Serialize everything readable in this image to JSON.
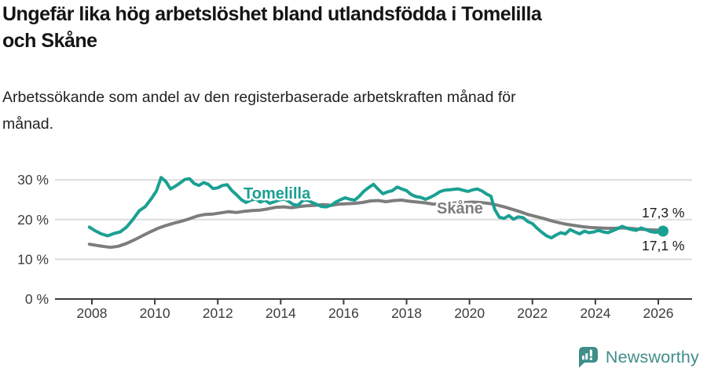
{
  "header": {
    "title_line1": "Ungefär lika hög arbetslöshet bland utlandsfödda i Tomelilla",
    "title_line2": "och Skåne",
    "subtitle_line1": "Arbetssökande som andel av den registerbaserade arbetskraften månad för",
    "subtitle_line2": "månad."
  },
  "chart_data": {
    "type": "line",
    "title": "Ungefär lika hög arbetslöshet bland utlandsfödda i Tomelilla och Skåne",
    "subtitle": "Arbetssökande som andel av den registerbaserade arbetskraften månad för månad.",
    "xlim": [
      2007.8,
      2027.1
    ],
    "ylim": [
      0,
      32
    ],
    "grid": "horizontal-only",
    "legend_position": "inline-labels-on-lines",
    "x_ticks": [
      2008,
      2010,
      2012,
      2014,
      2016,
      2018,
      2020,
      2022,
      2024,
      2026
    ],
    "y_ticks": [
      {
        "value": 0,
        "label": "0 %"
      },
      {
        "value": 10,
        "label": "10 %"
      },
      {
        "value": 20,
        "label": "20 %"
      },
      {
        "value": 30,
        "label": "30 %"
      }
    ],
    "colors": {
      "tomelilla": "#1aa093",
      "skane": "#7d7d7d",
      "grid": "#dcdcdc",
      "axis": "#3c3c3c"
    },
    "series": [
      {
        "name": "Tomelilla",
        "color": "#1aa093",
        "end_label": "17,1 %",
        "last_value": 17.1,
        "points": [
          [
            2007.92,
            18.1
          ],
          [
            2008.1,
            17.2
          ],
          [
            2008.3,
            16.4
          ],
          [
            2008.5,
            15.9
          ],
          [
            2008.7,
            16.5
          ],
          [
            2008.9,
            16.9
          ],
          [
            2009.1,
            18.1
          ],
          [
            2009.3,
            20.0
          ],
          [
            2009.5,
            22.2
          ],
          [
            2009.7,
            23.3
          ],
          [
            2009.9,
            25.4
          ],
          [
            2010.05,
            27.2
          ],
          [
            2010.2,
            30.6
          ],
          [
            2010.35,
            29.6
          ],
          [
            2010.5,
            27.7
          ],
          [
            2010.65,
            28.4
          ],
          [
            2010.8,
            29.2
          ],
          [
            2010.95,
            30.1
          ],
          [
            2011.1,
            30.3
          ],
          [
            2011.25,
            29.1
          ],
          [
            2011.4,
            28.6
          ],
          [
            2011.55,
            29.3
          ],
          [
            2011.7,
            28.9
          ],
          [
            2011.85,
            27.8
          ],
          [
            2012.0,
            28.0
          ],
          [
            2012.15,
            28.6
          ],
          [
            2012.3,
            28.8
          ],
          [
            2012.45,
            27.3
          ],
          [
            2012.6,
            26.2
          ],
          [
            2012.75,
            25.0
          ],
          [
            2012.9,
            24.3
          ],
          [
            2013.05,
            24.9
          ],
          [
            2013.2,
            25.2
          ],
          [
            2013.35,
            24.4
          ],
          [
            2013.5,
            24.9
          ],
          [
            2013.65,
            24.1
          ],
          [
            2013.8,
            24.5
          ],
          [
            2013.95,
            24.9
          ],
          [
            2014.1,
            25.2
          ],
          [
            2014.25,
            24.6
          ],
          [
            2014.4,
            23.8
          ],
          [
            2014.55,
            23.6
          ],
          [
            2014.7,
            24.8
          ],
          [
            2014.85,
            24.9
          ],
          [
            2015.0,
            24.3
          ],
          [
            2015.15,
            23.8
          ],
          [
            2015.3,
            23.3
          ],
          [
            2015.45,
            23.2
          ],
          [
            2015.6,
            23.6
          ],
          [
            2015.75,
            24.4
          ],
          [
            2015.9,
            25.0
          ],
          [
            2016.05,
            25.5
          ],
          [
            2016.2,
            25.1
          ],
          [
            2016.35,
            24.9
          ],
          [
            2016.5,
            25.9
          ],
          [
            2016.65,
            27.2
          ],
          [
            2016.8,
            28.1
          ],
          [
            2016.95,
            28.9
          ],
          [
            2017.1,
            27.6
          ],
          [
            2017.25,
            26.5
          ],
          [
            2017.4,
            27.0
          ],
          [
            2017.55,
            27.3
          ],
          [
            2017.7,
            28.2
          ],
          [
            2017.85,
            27.7
          ],
          [
            2018.0,
            27.3
          ],
          [
            2018.15,
            26.3
          ],
          [
            2018.3,
            25.8
          ],
          [
            2018.45,
            25.6
          ],
          [
            2018.6,
            25.1
          ],
          [
            2018.75,
            25.6
          ],
          [
            2018.9,
            26.2
          ],
          [
            2019.05,
            27.0
          ],
          [
            2019.2,
            27.4
          ],
          [
            2019.35,
            27.5
          ],
          [
            2019.5,
            27.6
          ],
          [
            2019.65,
            27.7
          ],
          [
            2019.8,
            27.4
          ],
          [
            2019.95,
            27.1
          ],
          [
            2020.1,
            27.5
          ],
          [
            2020.25,
            27.7
          ],
          [
            2020.4,
            27.2
          ],
          [
            2020.55,
            26.4
          ],
          [
            2020.68,
            25.9
          ],
          [
            2020.8,
            22.6
          ],
          [
            2020.95,
            20.6
          ],
          [
            2021.1,
            20.3
          ],
          [
            2021.25,
            21.0
          ],
          [
            2021.4,
            20.1
          ],
          [
            2021.55,
            20.7
          ],
          [
            2021.7,
            20.5
          ],
          [
            2021.85,
            19.5
          ],
          [
            2022.0,
            19.0
          ],
          [
            2022.15,
            17.8
          ],
          [
            2022.3,
            16.8
          ],
          [
            2022.45,
            15.9
          ],
          [
            2022.6,
            15.4
          ],
          [
            2022.75,
            16.1
          ],
          [
            2022.9,
            16.7
          ],
          [
            2023.05,
            16.4
          ],
          [
            2023.2,
            17.5
          ],
          [
            2023.35,
            16.9
          ],
          [
            2023.5,
            16.4
          ],
          [
            2023.65,
            17.1
          ],
          [
            2023.8,
            16.7
          ],
          [
            2023.95,
            16.9
          ],
          [
            2024.1,
            17.3
          ],
          [
            2024.25,
            16.9
          ],
          [
            2024.4,
            16.7
          ],
          [
            2024.55,
            17.2
          ],
          [
            2024.7,
            17.7
          ],
          [
            2024.85,
            18.3
          ],
          [
            2025.0,
            17.8
          ],
          [
            2025.15,
            17.5
          ],
          [
            2025.3,
            17.3
          ],
          [
            2025.45,
            17.9
          ],
          [
            2025.6,
            17.5
          ],
          [
            2025.75,
            17.0
          ],
          [
            2025.9,
            16.8
          ],
          [
            2026.05,
            16.9
          ],
          [
            2026.15,
            17.1
          ]
        ]
      },
      {
        "name": "Skåne",
        "color": "#7d7d7d",
        "end_label": "17,3 %",
        "last_value": 17.3,
        "points": [
          [
            2007.92,
            13.8
          ],
          [
            2008.15,
            13.5
          ],
          [
            2008.4,
            13.2
          ],
          [
            2008.6,
            13.0
          ],
          [
            2008.85,
            13.3
          ],
          [
            2009.1,
            14.0
          ],
          [
            2009.35,
            14.9
          ],
          [
            2009.6,
            15.9
          ],
          [
            2009.85,
            16.9
          ],
          [
            2010.1,
            17.8
          ],
          [
            2010.35,
            18.5
          ],
          [
            2010.6,
            19.1
          ],
          [
            2010.85,
            19.6
          ],
          [
            2011.1,
            20.2
          ],
          [
            2011.35,
            20.9
          ],
          [
            2011.6,
            21.3
          ],
          [
            2011.85,
            21.4
          ],
          [
            2012.1,
            21.7
          ],
          [
            2012.35,
            22.0
          ],
          [
            2012.6,
            21.8
          ],
          [
            2012.85,
            22.1
          ],
          [
            2013.1,
            22.3
          ],
          [
            2013.35,
            22.4
          ],
          [
            2013.6,
            22.7
          ],
          [
            2013.85,
            23.1
          ],
          [
            2014.1,
            23.2
          ],
          [
            2014.35,
            23.0
          ],
          [
            2014.6,
            23.3
          ],
          [
            2014.85,
            23.5
          ],
          [
            2015.1,
            23.6
          ],
          [
            2015.35,
            23.8
          ],
          [
            2015.6,
            23.6
          ],
          [
            2015.85,
            23.9
          ],
          [
            2016.1,
            24.0
          ],
          [
            2016.35,
            24.1
          ],
          [
            2016.6,
            24.3
          ],
          [
            2016.85,
            24.7
          ],
          [
            2017.1,
            24.8
          ],
          [
            2017.35,
            24.5
          ],
          [
            2017.6,
            24.8
          ],
          [
            2017.85,
            24.9
          ],
          [
            2018.1,
            24.6
          ],
          [
            2018.35,
            24.4
          ],
          [
            2018.6,
            24.2
          ],
          [
            2018.85,
            23.9
          ],
          [
            2019.1,
            23.9
          ],
          [
            2019.35,
            24.1
          ],
          [
            2019.6,
            24.2
          ],
          [
            2019.85,
            24.3
          ],
          [
            2020.1,
            24.4
          ],
          [
            2020.35,
            24.3
          ],
          [
            2020.6,
            24.1
          ],
          [
            2020.85,
            23.7
          ],
          [
            2021.1,
            23.2
          ],
          [
            2021.35,
            22.6
          ],
          [
            2021.6,
            22.0
          ],
          [
            2021.85,
            21.3
          ],
          [
            2022.1,
            20.8
          ],
          [
            2022.35,
            20.3
          ],
          [
            2022.6,
            19.7
          ],
          [
            2022.85,
            19.2
          ],
          [
            2023.1,
            18.8
          ],
          [
            2023.35,
            18.5
          ],
          [
            2023.6,
            18.2
          ],
          [
            2023.85,
            18.0
          ],
          [
            2024.1,
            17.9
          ],
          [
            2024.35,
            17.8
          ],
          [
            2024.6,
            17.8
          ],
          [
            2024.85,
            17.9
          ],
          [
            2025.1,
            17.8
          ],
          [
            2025.35,
            17.6
          ],
          [
            2025.6,
            17.5
          ],
          [
            2025.85,
            17.4
          ],
          [
            2026.15,
            17.3
          ]
        ]
      }
    ]
  },
  "footer": {
    "brand": "Newsworthy",
    "brand_color": "#3f8e89",
    "logo_icon": "newsworthy-speech-bubble-chart-icon"
  }
}
